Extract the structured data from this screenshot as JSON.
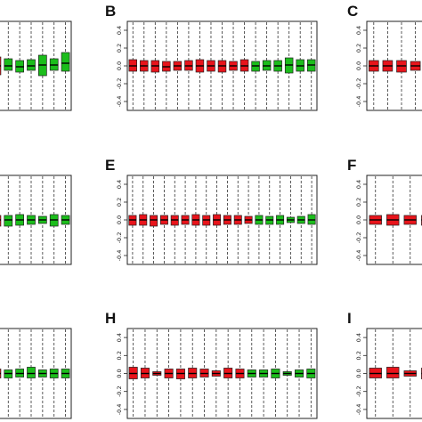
{
  "colors": {
    "red": "#e8141b",
    "green": "#1bbd1b",
    "frame": "#222222",
    "median": "#000000"
  },
  "chart_data": [
    {
      "type": "box",
      "panel_letter": "",
      "ylim": [
        -0.5,
        0.5
      ],
      "yticks": [
        "0.4",
        "0.2",
        "0.0",
        "-0.2",
        "-0.4"
      ],
      "boxes": [
        {
          "color": "red",
          "q1": -0.1,
          "median": 0.0,
          "q3": 0.1
        },
        {
          "color": "green",
          "q1": -0.05,
          "median": 0.0,
          "q3": 0.08
        },
        {
          "color": "green",
          "q1": -0.07,
          "median": -0.01,
          "q3": 0.06
        },
        {
          "color": "green",
          "q1": -0.05,
          "median": 0.0,
          "q3": 0.07
        },
        {
          "color": "green",
          "q1": -0.11,
          "median": 0.01,
          "q3": 0.12
        },
        {
          "color": "green",
          "q1": -0.05,
          "median": 0.01,
          "q3": 0.08
        },
        {
          "color": "green",
          "q1": -0.06,
          "median": 0.03,
          "q3": 0.15
        }
      ]
    },
    {
      "type": "box",
      "panel_letter": "B",
      "ylim": [
        -0.5,
        0.5
      ],
      "yticks": [
        "0.4",
        "0.2",
        "0.0",
        "-0.2",
        "-0.4"
      ],
      "boxes": [
        {
          "color": "red",
          "q1": -0.06,
          "median": 0.0,
          "q3": 0.07
        },
        {
          "color": "red",
          "q1": -0.06,
          "median": 0.0,
          "q3": 0.06
        },
        {
          "color": "red",
          "q1": -0.07,
          "median": 0.0,
          "q3": 0.06
        },
        {
          "color": "red",
          "q1": -0.06,
          "median": -0.01,
          "q3": 0.05
        },
        {
          "color": "red",
          "q1": -0.05,
          "median": 0.0,
          "q3": 0.05
        },
        {
          "color": "red",
          "q1": -0.05,
          "median": 0.0,
          "q3": 0.06
        },
        {
          "color": "red",
          "q1": -0.07,
          "median": 0.0,
          "q3": 0.07
        },
        {
          "color": "red",
          "q1": -0.06,
          "median": 0.0,
          "q3": 0.06
        },
        {
          "color": "red",
          "q1": -0.07,
          "median": 0.0,
          "q3": 0.06
        },
        {
          "color": "red",
          "q1": -0.05,
          "median": 0.0,
          "q3": 0.05
        },
        {
          "color": "red",
          "q1": -0.06,
          "median": 0.0,
          "q3": 0.07
        },
        {
          "color": "green",
          "q1": -0.06,
          "median": 0.0,
          "q3": 0.05
        },
        {
          "color": "green",
          "q1": -0.05,
          "median": 0.0,
          "q3": 0.06
        },
        {
          "color": "green",
          "q1": -0.06,
          "median": 0.0,
          "q3": 0.06
        },
        {
          "color": "green",
          "q1": -0.08,
          "median": 0.01,
          "q3": 0.09
        },
        {
          "color": "green",
          "q1": -0.06,
          "median": 0.0,
          "q3": 0.07
        },
        {
          "color": "green",
          "q1": -0.06,
          "median": 0.01,
          "q3": 0.07
        }
      ]
    },
    {
      "type": "box",
      "panel_letter": "C",
      "ylim": [
        -0.5,
        0.5
      ],
      "yticks": [
        "0.4",
        "0.2",
        "0.0",
        "-0.2",
        "-0.4"
      ],
      "boxes": [
        {
          "color": "red",
          "q1": -0.06,
          "median": 0.0,
          "q3": 0.06
        },
        {
          "color": "red",
          "q1": -0.06,
          "median": 0.0,
          "q3": 0.06
        },
        {
          "color": "red",
          "q1": -0.07,
          "median": 0.0,
          "q3": 0.06
        },
        {
          "color": "red",
          "q1": -0.05,
          "median": 0.0,
          "q3": 0.05
        },
        {
          "color": "red",
          "q1": -0.06,
          "median": 0.0,
          "q3": 0.07
        }
      ]
    },
    {
      "type": "box",
      "panel_letter": "",
      "ylim": [
        -0.5,
        0.5
      ],
      "yticks": [
        "0.4",
        "0.2",
        "0.0",
        "-0.2",
        "-0.4"
      ],
      "boxes": [
        {
          "color": "red",
          "q1": -0.07,
          "median": 0.0,
          "q3": 0.05
        },
        {
          "color": "green",
          "q1": -0.07,
          "median": 0.0,
          "q3": 0.05
        },
        {
          "color": "green",
          "q1": -0.06,
          "median": 0.0,
          "q3": 0.06
        },
        {
          "color": "green",
          "q1": -0.05,
          "median": 0.0,
          "q3": 0.05
        },
        {
          "color": "green",
          "q1": -0.04,
          "median": 0.0,
          "q3": 0.04
        },
        {
          "color": "green",
          "q1": -0.07,
          "median": 0.0,
          "q3": 0.06
        },
        {
          "color": "green",
          "q1": -0.05,
          "median": 0.0,
          "q3": 0.05
        }
      ]
    },
    {
      "type": "box",
      "panel_letter": "E",
      "ylim": [
        -0.5,
        0.5
      ],
      "yticks": [
        "0.4",
        "0.2",
        "0.0",
        "-0.2",
        "-0.4"
      ],
      "boxes": [
        {
          "color": "red",
          "q1": -0.06,
          "median": 0.0,
          "q3": 0.05
        },
        {
          "color": "red",
          "q1": -0.06,
          "median": 0.0,
          "q3": 0.06
        },
        {
          "color": "red",
          "q1": -0.07,
          "median": 0.0,
          "q3": 0.05
        },
        {
          "color": "red",
          "q1": -0.05,
          "median": 0.0,
          "q3": 0.05
        },
        {
          "color": "red",
          "q1": -0.06,
          "median": 0.0,
          "q3": 0.05
        },
        {
          "color": "red",
          "q1": -0.05,
          "median": 0.0,
          "q3": 0.05
        },
        {
          "color": "red",
          "q1": -0.06,
          "median": 0.0,
          "q3": 0.06
        },
        {
          "color": "red",
          "q1": -0.06,
          "median": 0.0,
          "q3": 0.05
        },
        {
          "color": "red",
          "q1": -0.06,
          "median": 0.0,
          "q3": 0.06
        },
        {
          "color": "red",
          "q1": -0.05,
          "median": 0.0,
          "q3": 0.05
        },
        {
          "color": "red",
          "q1": -0.05,
          "median": 0.0,
          "q3": 0.05
        },
        {
          "color": "red",
          "q1": -0.04,
          "median": 0.0,
          "q3": 0.04
        },
        {
          "color": "green",
          "q1": -0.05,
          "median": 0.0,
          "q3": 0.05
        },
        {
          "color": "green",
          "q1": -0.05,
          "median": 0.0,
          "q3": 0.04
        },
        {
          "color": "green",
          "q1": -0.05,
          "median": 0.0,
          "q3": 0.05
        },
        {
          "color": "green",
          "q1": -0.03,
          "median": 0.0,
          "q3": 0.03
        },
        {
          "color": "green",
          "q1": -0.04,
          "median": 0.0,
          "q3": 0.04
        },
        {
          "color": "green",
          "q1": -0.05,
          "median": 0.0,
          "q3": 0.06
        }
      ]
    },
    {
      "type": "box",
      "panel_letter": "F",
      "ylim": [
        -0.5,
        0.5
      ],
      "yticks": [
        "0.4",
        "0.2",
        "0.0",
        "-0.2",
        "-0.4"
      ],
      "boxes": [
        {
          "color": "red",
          "q1": -0.05,
          "median": 0.0,
          "q3": 0.05
        },
        {
          "color": "red",
          "q1": -0.06,
          "median": 0.0,
          "q3": 0.06
        },
        {
          "color": "red",
          "q1": -0.05,
          "median": 0.0,
          "q3": 0.05
        },
        {
          "color": "red",
          "q1": -0.06,
          "median": 0.0,
          "q3": 0.05
        }
      ]
    },
    {
      "type": "box",
      "panel_letter": "",
      "ylim": [
        -0.5,
        0.5
      ],
      "yticks": [
        "0.4",
        "0.2",
        "0.0",
        "-0.2",
        "-0.4"
      ],
      "boxes": [
        {
          "color": "red",
          "q1": -0.05,
          "median": 0.0,
          "q3": 0.05
        },
        {
          "color": "green",
          "q1": -0.05,
          "median": 0.0,
          "q3": 0.04
        },
        {
          "color": "green",
          "q1": -0.04,
          "median": 0.0,
          "q3": 0.05
        },
        {
          "color": "green",
          "q1": -0.05,
          "median": 0.0,
          "q3": 0.07
        },
        {
          "color": "green",
          "q1": -0.04,
          "median": 0.0,
          "q3": 0.04
        },
        {
          "color": "green",
          "q1": -0.05,
          "median": 0.0,
          "q3": 0.05
        },
        {
          "color": "green",
          "q1": -0.05,
          "median": 0.0,
          "q3": 0.05
        }
      ]
    },
    {
      "type": "box",
      "panel_letter": "H",
      "ylim": [
        -0.5,
        0.5
      ],
      "yticks": [
        "0.4",
        "0.2",
        "0.0",
        "-0.2",
        "-0.4"
      ],
      "boxes": [
        {
          "color": "red",
          "q1": -0.06,
          "median": 0.0,
          "q3": 0.07
        },
        {
          "color": "red",
          "q1": -0.05,
          "median": 0.0,
          "q3": 0.06
        },
        {
          "color": "red",
          "q1": -0.02,
          "median": 0.0,
          "q3": 0.02
        },
        {
          "color": "red",
          "q1": -0.05,
          "median": 0.0,
          "q3": 0.05
        },
        {
          "color": "red",
          "q1": -0.06,
          "median": 0.0,
          "q3": 0.05
        },
        {
          "color": "red",
          "q1": -0.05,
          "median": 0.0,
          "q3": 0.06
        },
        {
          "color": "red",
          "q1": -0.04,
          "median": 0.0,
          "q3": 0.05
        },
        {
          "color": "red",
          "q1": -0.03,
          "median": 0.0,
          "q3": 0.03
        },
        {
          "color": "red",
          "q1": -0.05,
          "median": 0.0,
          "q3": 0.06
        },
        {
          "color": "red",
          "q1": -0.05,
          "median": 0.0,
          "q3": 0.05
        },
        {
          "color": "green",
          "q1": -0.04,
          "median": 0.0,
          "q3": 0.04
        },
        {
          "color": "green",
          "q1": -0.04,
          "median": 0.0,
          "q3": 0.04
        },
        {
          "color": "green",
          "q1": -0.05,
          "median": 0.0,
          "q3": 0.05
        },
        {
          "color": "green",
          "q1": -0.02,
          "median": 0.0,
          "q3": 0.02
        },
        {
          "color": "green",
          "q1": -0.04,
          "median": 0.0,
          "q3": 0.04
        },
        {
          "color": "green",
          "q1": -0.05,
          "median": 0.0,
          "q3": 0.05
        }
      ]
    },
    {
      "type": "box",
      "panel_letter": "I",
      "ylim": [
        -0.5,
        0.5
      ],
      "yticks": [
        "0.4",
        "0.2",
        "0.0",
        "-0.2",
        "-0.4"
      ],
      "boxes": [
        {
          "color": "red",
          "q1": -0.05,
          "median": 0.0,
          "q3": 0.06
        },
        {
          "color": "red",
          "q1": -0.05,
          "median": 0.0,
          "q3": 0.07
        },
        {
          "color": "red",
          "q1": -0.03,
          "median": 0.0,
          "q3": 0.03
        },
        {
          "color": "red",
          "q1": -0.06,
          "median": 0.0,
          "q3": 0.06
        }
      ]
    }
  ]
}
